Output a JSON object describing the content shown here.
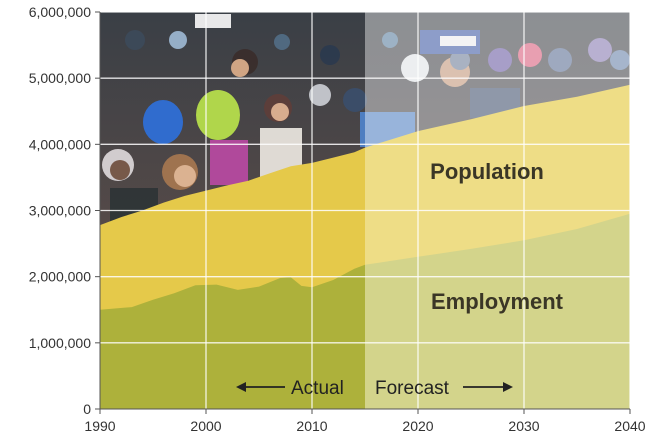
{
  "chart_data": {
    "type": "area",
    "stacked": false,
    "xlim": [
      1990,
      2040
    ],
    "ylim": [
      0,
      6000000
    ],
    "x_ticks": [
      1990,
      2000,
      2010,
      2020,
      2030,
      2040
    ],
    "y_ticks": [
      0,
      1000000,
      2000000,
      3000000,
      4000000,
      5000000,
      6000000
    ],
    "y_tick_labels": [
      "0",
      "1,000,000",
      "2,000,000",
      "3,000,000",
      "4,000,000",
      "5,000,000",
      "6,000,000"
    ],
    "grid": true,
    "actual_end": 2015,
    "series": [
      {
        "name": "Population",
        "color_actual": "#e5c94a",
        "color_forecast": "#eedd86",
        "points": [
          [
            1990,
            2780000
          ],
          [
            1992,
            2900000
          ],
          [
            1994,
            3000000
          ],
          [
            1996,
            3120000
          ],
          [
            1998,
            3220000
          ],
          [
            2000,
            3300000
          ],
          [
            2002,
            3380000
          ],
          [
            2004,
            3450000
          ],
          [
            2006,
            3560000
          ],
          [
            2008,
            3670000
          ],
          [
            2010,
            3720000
          ],
          [
            2012,
            3800000
          ],
          [
            2014,
            3880000
          ],
          [
            2015,
            3950000
          ],
          [
            2020,
            4200000
          ],
          [
            2025,
            4380000
          ],
          [
            2030,
            4580000
          ],
          [
            2035,
            4720000
          ],
          [
            2040,
            4900000
          ]
        ]
      },
      {
        "name": "Employment",
        "color_actual": "#adb13b",
        "color_forecast": "#d3d48b",
        "points": [
          [
            1990,
            1500000
          ],
          [
            1993,
            1540000
          ],
          [
            1995,
            1650000
          ],
          [
            1997,
            1750000
          ],
          [
            1999,
            1870000
          ],
          [
            2001,
            1880000
          ],
          [
            2003,
            1800000
          ],
          [
            2005,
            1850000
          ],
          [
            2007,
            1980000
          ],
          [
            2008,
            1990000
          ],
          [
            2009,
            1860000
          ],
          [
            2010,
            1840000
          ],
          [
            2012,
            1950000
          ],
          [
            2014,
            2120000
          ],
          [
            2015,
            2180000
          ],
          [
            2020,
            2300000
          ],
          [
            2025,
            2420000
          ],
          [
            2030,
            2550000
          ],
          [
            2035,
            2720000
          ],
          [
            2040,
            2950000
          ]
        ]
      }
    ],
    "annotations": {
      "actual": "Actual",
      "forecast": "Forecast"
    }
  }
}
